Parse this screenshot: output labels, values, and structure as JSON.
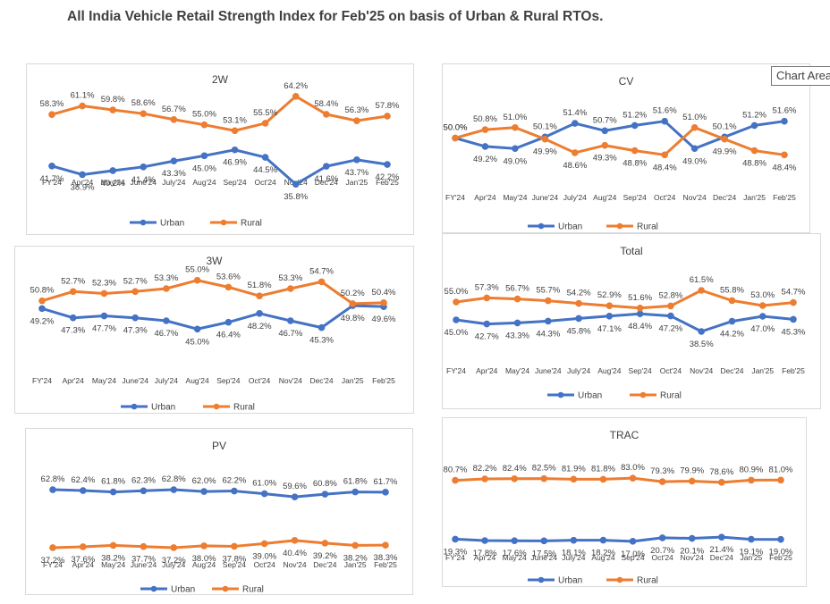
{
  "title": "All India Vehicle Retail Strength Index for Feb'25 on basis of Urban & Rural RTOs.",
  "tooltip": "Chart Area",
  "colors": {
    "urban": "#4472C4",
    "rural": "#ED7D31",
    "text": "#404040"
  },
  "chart_data": [
    {
      "type": "line",
      "title": "2W",
      "categories": [
        "FY'24",
        "Apr'24",
        "May'24",
        "June'24",
        "July'24",
        "Aug'24",
        "Sep'24",
        "Oct'24",
        "Nov'24",
        "Dec'24",
        "Jan'25",
        "Feb'25"
      ],
      "series": [
        {
          "name": "Urban",
          "values": [
            41.7,
            38.9,
            40.2,
            41.4,
            43.3,
            45.0,
            46.9,
            44.5,
            35.8,
            41.6,
            43.7,
            42.2
          ],
          "labels": [
            "41.7%",
            "38.9%",
            "40.2%",
            "41.4%",
            "43.3%",
            "45.0%",
            "46.9%",
            "44.5%",
            "35.8%",
            "41.6%",
            "43.7%",
            "42.2%"
          ]
        },
        {
          "name": "Rural",
          "values": [
            58.3,
            61.1,
            59.8,
            58.6,
            56.7,
            55.0,
            53.1,
            55.5,
            64.2,
            58.4,
            56.3,
            57.8
          ],
          "labels": [
            "58.3%",
            "61.1%",
            "59.8%",
            "58.6%",
            "56.7%",
            "55.0%",
            "53.1%",
            "55.5%",
            "64.2%",
            "58.4%",
            "56.3%",
            "57.8%"
          ]
        }
      ],
      "legend": "bottom"
    },
    {
      "type": "line",
      "title": "CV",
      "categories": [
        "FY'24",
        "Apr'24",
        "May'24",
        "June'24",
        "July'24",
        "Aug'24",
        "Sep'24",
        "Oct'24",
        "Nov'24",
        "Dec'24",
        "Jan'25",
        "Feb'25"
      ],
      "series": [
        {
          "name": "Urban",
          "values": [
            50.0,
            49.2,
            49.0,
            50.1,
            51.4,
            50.7,
            51.2,
            51.6,
            49.0,
            50.1,
            51.2,
            51.6
          ],
          "labels": [
            "50.0%",
            "49.2%",
            "49.0%",
            "50.1%",
            "51.4%",
            "50.7%",
            "51.2%",
            "51.6%",
            "49.0%",
            "50.1%",
            "51.2%",
            "51.6%"
          ]
        },
        {
          "name": "Rural",
          "values": [
            50.0,
            50.8,
            51.0,
            49.9,
            48.6,
            49.3,
            48.8,
            48.4,
            51.0,
            49.9,
            48.8,
            48.4
          ],
          "labels": [
            "50.0%",
            "50.8%",
            "51.0%",
            "49.9%",
            "48.6%",
            "49.3%",
            "48.8%",
            "48.4%",
            "51.0%",
            "49.9%",
            "48.8%",
            "48.4%"
          ]
        }
      ],
      "legend": "bottom"
    },
    {
      "type": "line",
      "title": "3W",
      "categories": [
        "FY'24",
        "Apr'24",
        "May'24",
        "June'24",
        "July'24",
        "Aug'24",
        "Sep'24",
        "Oct'24",
        "Nov'24",
        "Dec'24",
        "Jan'25",
        "Feb'25"
      ],
      "series": [
        {
          "name": "Urban",
          "values": [
            49.2,
            47.3,
            47.7,
            47.3,
            46.7,
            45.0,
            46.4,
            48.2,
            46.7,
            45.3,
            49.8,
            49.6
          ],
          "labels": [
            "49.2%",
            "47.3%",
            "47.7%",
            "47.3%",
            "46.7%",
            "45.0%",
            "46.4%",
            "48.2%",
            "46.7%",
            "45.3%",
            "49.8%",
            "49.6%"
          ]
        },
        {
          "name": "Rural",
          "values": [
            50.8,
            52.7,
            52.3,
            52.7,
            53.3,
            55.0,
            53.6,
            51.8,
            53.3,
            54.7,
            50.2,
            50.4
          ],
          "labels": [
            "50.8%",
            "52.7%",
            "52.3%",
            "52.7%",
            "53.3%",
            "55.0%",
            "53.6%",
            "51.8%",
            "53.3%",
            "54.7%",
            "50.2%",
            "50.4%"
          ]
        }
      ],
      "legend": "bottom"
    },
    {
      "type": "line",
      "title": "Total",
      "categories": [
        "FY'24",
        "Apr'24",
        "May'24",
        "June'24",
        "July'24",
        "Aug'24",
        "Sep'24",
        "Oct'24",
        "Nov'24",
        "Dec'24",
        "Jan'25",
        "Feb'25"
      ],
      "series": [
        {
          "name": "Urban",
          "values": [
            45.0,
            42.7,
            43.3,
            44.3,
            45.8,
            47.1,
            48.4,
            47.2,
            38.5,
            44.2,
            47.0,
            45.3
          ],
          "labels": [
            "45.0%",
            "42.7%",
            "43.3%",
            "44.3%",
            "45.8%",
            "47.1%",
            "48.4%",
            "47.2%",
            "38.5%",
            "44.2%",
            "47.0%",
            "45.3%"
          ]
        },
        {
          "name": "Rural",
          "values": [
            55.0,
            57.3,
            56.7,
            55.7,
            54.2,
            52.9,
            51.6,
            52.8,
            61.5,
            55.8,
            53.0,
            54.7
          ],
          "labels": [
            "55.0%",
            "57.3%",
            "56.7%",
            "55.7%",
            "54.2%",
            "52.9%",
            "51.6%",
            "52.8%",
            "61.5%",
            "55.8%",
            "53.0%",
            "54.7%"
          ]
        }
      ],
      "legend": "bottom"
    },
    {
      "type": "line",
      "title": "PV",
      "categories": [
        "FY'24",
        "Apr'24",
        "May'24",
        "June'24",
        "July'24",
        "Aug'24",
        "Sep'24",
        "Oct'24",
        "Nov'24",
        "Dec'24",
        "Jan'25",
        "Feb'25"
      ],
      "series": [
        {
          "name": "Urban",
          "values": [
            62.8,
            62.4,
            61.8,
            62.3,
            62.8,
            62.0,
            62.2,
            61.0,
            59.6,
            60.8,
            61.8,
            61.7
          ],
          "labels": [
            "62.8%",
            "62.4%",
            "61.8%",
            "62.3%",
            "62.8%",
            "62.0%",
            "62.2%",
            "61.0%",
            "59.6%",
            "60.8%",
            "61.8%",
            "61.7%"
          ]
        },
        {
          "name": "Rural",
          "values": [
            37.2,
            37.6,
            38.2,
            37.7,
            37.2,
            38.0,
            37.8,
            39.0,
            40.4,
            39.2,
            38.2,
            38.3
          ],
          "labels": [
            "37.2%",
            "37.6%",
            "38.2%",
            "37.7%",
            "37.2%",
            "38.0%",
            "37.8%",
            "39.0%",
            "40.4%",
            "39.2%",
            "38.2%",
            "38.3%"
          ]
        }
      ],
      "legend": "bottom"
    },
    {
      "type": "line",
      "title": "TRAC",
      "categories": [
        "FY'24",
        "Apr'24",
        "May'24",
        "June'24",
        "July'24",
        "Aug'24",
        "Sep'24",
        "Oct'24",
        "Nov'24",
        "Dec'24",
        "Jan'25",
        "Feb'25"
      ],
      "series": [
        {
          "name": "Urban",
          "values": [
            19.3,
            17.8,
            17.6,
            17.5,
            18.1,
            18.2,
            17.0,
            20.7,
            20.1,
            21.4,
            19.1,
            19.0
          ],
          "labels": [
            "19.3%",
            "17.8%",
            "17.6%",
            "17.5%",
            "18.1%",
            "18.2%",
            "17.0%",
            "20.7%",
            "20.1%",
            "21.4%",
            "19.1%",
            "19.0%"
          ]
        },
        {
          "name": "Rural",
          "values": [
            80.7,
            82.2,
            82.4,
            82.5,
            81.9,
            81.8,
            83.0,
            79.3,
            79.9,
            78.6,
            80.9,
            81.0
          ],
          "labels": [
            "80.7%",
            "82.2%",
            "82.4%",
            "82.5%",
            "81.9%",
            "81.8%",
            "83.0%",
            "79.3%",
            "79.9%",
            "78.6%",
            "80.9%",
            "81.0%"
          ]
        }
      ],
      "legend": "bottom"
    }
  ]
}
